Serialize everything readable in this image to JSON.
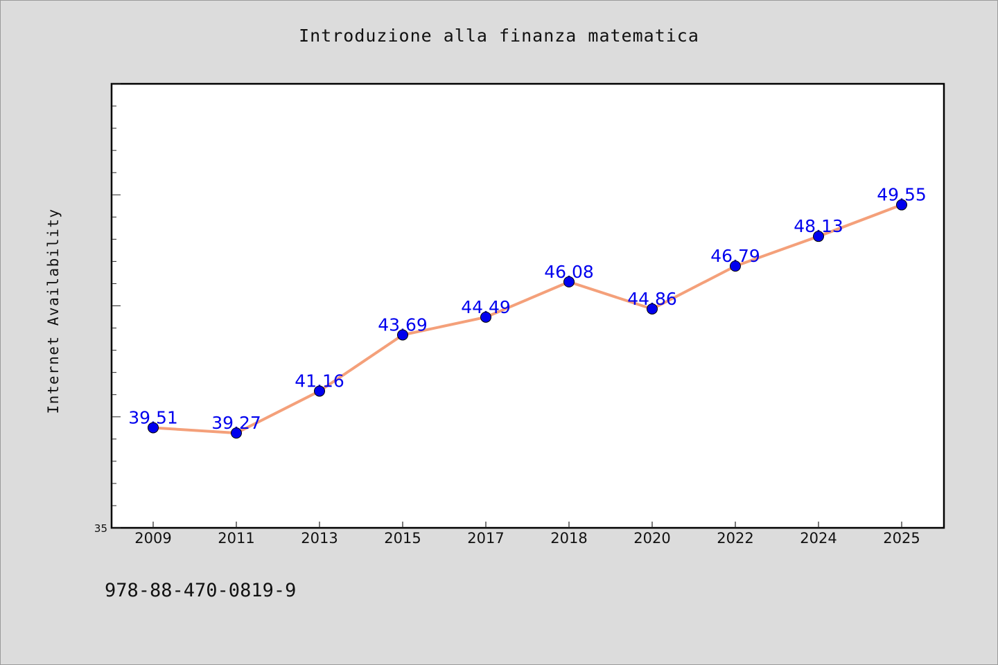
{
  "chart_data": {
    "type": "line",
    "title": "Introduzione alla finanza matematica",
    "xlabel": "",
    "ylabel": "Internet Availability",
    "categories": [
      "2009",
      "2011",
      "2013",
      "2015",
      "2017",
      "2018",
      "2020",
      "2022",
      "2024",
      "2025"
    ],
    "series": [
      {
        "values": [
          39.51,
          39.27,
          41.16,
          43.69,
          44.49,
          46.08,
          44.86,
          46.79,
          48.13,
          49.55
        ],
        "data_labels": [
          "39.51",
          "39.27",
          "41.16",
          "43.69",
          "44.49",
          "46.08",
          "44.86",
          "46.79",
          "48.13",
          "49.55"
        ]
      }
    ],
    "ylim": [
      35,
      55
    ],
    "y_tick_labels": [
      "35"
    ],
    "grid": false,
    "legend": "none",
    "line_color": "#f4a07a",
    "marker_color": "#0000ee",
    "label_color": "#0000ee"
  },
  "footer": {
    "isbn": "978-88-470-0819-9"
  },
  "colors": {
    "background": "#dcdcdc",
    "plot_background": "#ffffff",
    "axis": "#000000"
  }
}
